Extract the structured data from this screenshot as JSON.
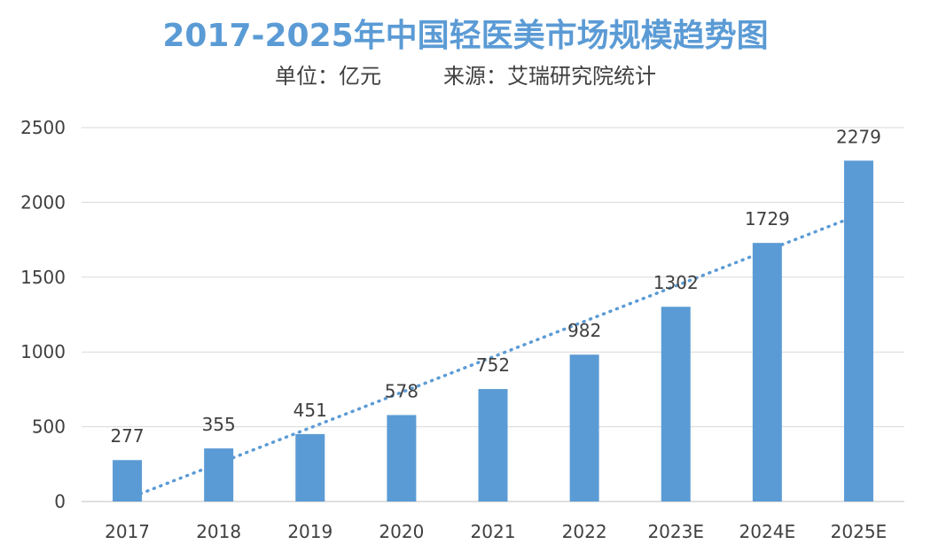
{
  "chart_data": {
    "type": "bar",
    "title": "2017-2025年中国轻医美市场规模趋势图",
    "subtitle_unit": "单位：亿元",
    "subtitle_source": "来源：艾瑞研究院统计",
    "categories": [
      "2017",
      "2018",
      "2019",
      "2020",
      "2021",
      "2022",
      "2023E",
      "2024E",
      "2025E"
    ],
    "values": [
      277,
      355,
      451,
      578,
      752,
      982,
      1302,
      1729,
      2279
    ],
    "data_labels": [
      "277",
      "355",
      "451",
      "578",
      "752",
      "982",
      "1302",
      "1729",
      "2279"
    ],
    "yticks": [
      "0",
      "500",
      "1000",
      "1500",
      "2000",
      "2500"
    ],
    "ylim": [
      0,
      2500
    ],
    "grid": true,
    "trendline": "linear, dotted",
    "bar_color": "#5b9bd5",
    "trend_color": "#5b9bd5"
  }
}
